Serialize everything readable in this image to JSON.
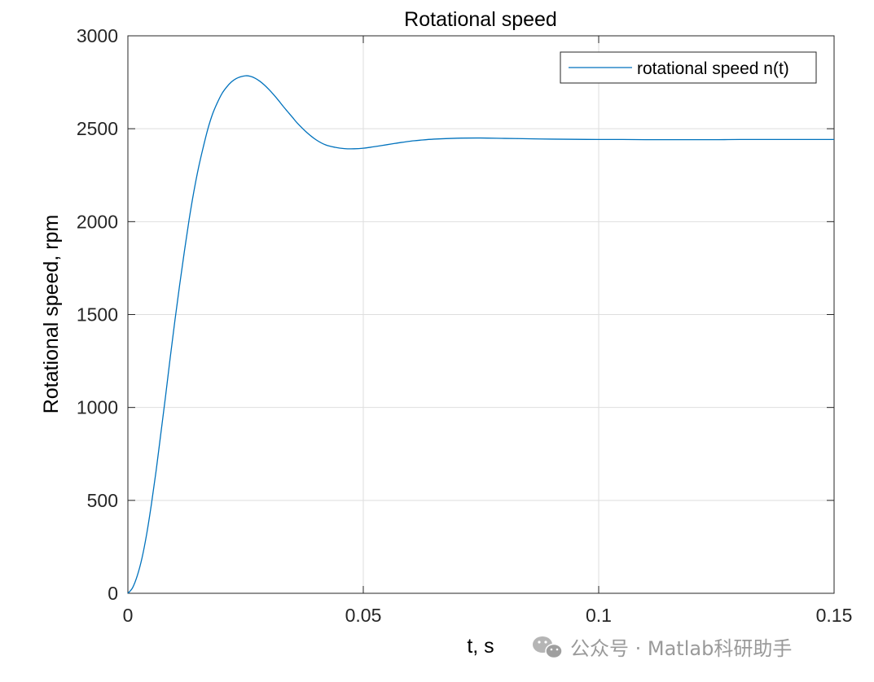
{
  "colors": {
    "series": "#0072BD",
    "grid": "#dedede",
    "axis": "#262626",
    "watermark": "#9a9a9a"
  },
  "watermark": {
    "icon": "wechat-icon",
    "text": "公众号 · Matlab科研助手"
  },
  "chart_data": {
    "type": "line",
    "title": "Rotational speed",
    "xlabel": "t, s",
    "ylabel": "Rotational speed, rpm",
    "xlim": [
      0,
      0.15
    ],
    "ylim": [
      0,
      3000
    ],
    "xticks": [
      0,
      0.05,
      0.1,
      0.15
    ],
    "xtick_labels": [
      "0",
      "0.05",
      "0.1",
      "0.15"
    ],
    "yticks": [
      0,
      500,
      1000,
      1500,
      2000,
      2500,
      3000
    ],
    "ytick_labels": [
      "0",
      "500",
      "1000",
      "1500",
      "2000",
      "2500",
      "3000"
    ],
    "grid": true,
    "legend_position": "top-right",
    "series": [
      {
        "name": "rotational speed n(t)",
        "x": [
          0,
          0.001,
          0.002,
          0.003,
          0.004,
          0.005,
          0.006,
          0.007,
          0.008,
          0.009,
          0.01,
          0.011,
          0.012,
          0.013,
          0.014,
          0.015,
          0.016,
          0.017,
          0.018,
          0.019,
          0.02,
          0.021,
          0.022,
          0.023,
          0.024,
          0.025,
          0.026,
          0.027,
          0.028,
          0.029,
          0.03,
          0.031,
          0.032,
          0.033,
          0.034,
          0.035,
          0.036,
          0.038,
          0.04,
          0.042,
          0.044,
          0.046,
          0.048,
          0.05,
          0.052,
          0.054,
          0.056,
          0.058,
          0.06,
          0.062,
          0.065,
          0.07,
          0.075,
          0.08,
          0.085,
          0.09,
          0.095,
          0.1,
          0.105,
          0.11,
          0.115,
          0.12,
          0.125,
          0.13,
          0.135,
          0.14,
          0.145,
          0.15
        ],
        "y": [
          0,
          30,
          95,
          190,
          320,
          480,
          660,
          860,
          1060,
          1270,
          1470,
          1660,
          1840,
          2010,
          2160,
          2290,
          2400,
          2500,
          2580,
          2640,
          2690,
          2725,
          2752,
          2770,
          2780,
          2785,
          2782,
          2772,
          2756,
          2735,
          2710,
          2682,
          2652,
          2620,
          2590,
          2560,
          2530,
          2480,
          2440,
          2413,
          2400,
          2393,
          2392,
          2395,
          2402,
          2410,
          2418,
          2426,
          2433,
          2438,
          2444,
          2449,
          2450,
          2448,
          2446,
          2444,
          2443,
          2442,
          2442,
          2441,
          2441,
          2441,
          2441,
          2442,
          2442,
          2442,
          2442,
          2442
        ]
      }
    ]
  }
}
